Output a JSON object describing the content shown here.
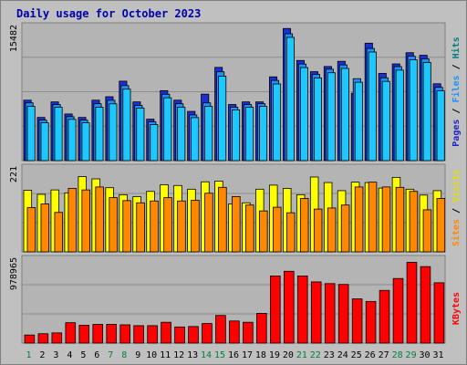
{
  "title": "Daily usage for October 2023",
  "colors": {
    "background": "#c0c0c0",
    "panel": "#b4b4b4",
    "title": "#0000aa",
    "hits": "#1e90ff",
    "files": "#1ec8ff",
    "pages": "#2222cc",
    "visits": "#ffff00",
    "sites": "#ff8800",
    "kbytes": "#ff0000",
    "weekend_label": "#008040",
    "weekday_label": "#000000"
  },
  "chart_data": [
    {
      "type": "bar",
      "title": "Daily usage for October 2023",
      "categories": [
        "1",
        "2",
        "3",
        "4",
        "5",
        "6",
        "7",
        "8",
        "9",
        "10",
        "11",
        "12",
        "13",
        "14",
        "15",
        "16",
        "17",
        "18",
        "19",
        "20",
        "21",
        "22",
        "23",
        "24",
        "25",
        "26",
        "27",
        "28",
        "29",
        "30",
        "31"
      ],
      "ymax_label": "15482",
      "ymax": 15482,
      "legend": [
        {
          "text": "Pages",
          "color": "#2222cc"
        },
        {
          "text": " / ",
          "color": "#000000"
        },
        {
          "text": "Files",
          "color": "#1e90ff"
        },
        {
          "text": " / ",
          "color": "#000000"
        },
        {
          "text": "Hits",
          "color": "#008080"
        }
      ],
      "series": [
        {
          "name": "Hits",
          "values": [
            7000,
            5000,
            6800,
            5400,
            5000,
            7000,
            7400,
            9200,
            6800,
            4800,
            8100,
            7000,
            5700,
            7700,
            10800,
            6500,
            6800,
            6800,
            9700,
            15300,
            11600,
            10300,
            10900,
            11500,
            7800,
            13600,
            10100,
            11200,
            12500,
            12200,
            8900
          ]
        },
        {
          "name": "Files",
          "values": [
            6900,
            4900,
            6700,
            5300,
            4900,
            6800,
            7200,
            8900,
            6600,
            4700,
            7900,
            6800,
            5500,
            6900,
            10500,
            6400,
            6700,
            6800,
            9500,
            14900,
            11400,
            10200,
            10800,
            11300,
            9700,
            13200,
            9800,
            11100,
            12300,
            12000,
            8700
          ]
        },
        {
          "name": "Pages",
          "values": [
            6700,
            4800,
            6600,
            5200,
            4800,
            6600,
            7000,
            8700,
            6500,
            4600,
            7700,
            6600,
            5400,
            6700,
            10200,
            6300,
            6600,
            6700,
            9300,
            14700,
            11200,
            10000,
            10600,
            11100,
            9500,
            13000,
            9600,
            10900,
            12100,
            11800,
            8500
          ]
        }
      ]
    },
    {
      "type": "bar",
      "categories": [
        "1",
        "2",
        "3",
        "4",
        "5",
        "6",
        "7",
        "8",
        "9",
        "10",
        "11",
        "12",
        "13",
        "14",
        "15",
        "16",
        "17",
        "18",
        "19",
        "20",
        "21",
        "22",
        "23",
        "24",
        "25",
        "26",
        "27",
        "28",
        "29",
        "30",
        "31"
      ],
      "ymax_label": "221",
      "ymax": 221,
      "legend": [
        {
          "text": "Sites",
          "color": "#ff8800"
        },
        {
          "text": " / ",
          "color": "#000000"
        },
        {
          "text": "Visits",
          "color": "#e0e000"
        }
      ],
      "series": [
        {
          "name": "Visits",
          "values": [
            167,
            156,
            168,
            160,
            204,
            198,
            174,
            155,
            150,
            164,
            182,
            180,
            170,
            190,
            192,
            130,
            133,
            170,
            181,
            172,
            155,
            203,
            188,
            166,
            189,
            188,
            173,
            202,
            170,
            154,
            166
          ]
        },
        {
          "name": "Sites",
          "values": [
            120,
            130,
            107,
            172,
            168,
            176,
            147,
            139,
            133,
            138,
            147,
            138,
            140,
            159,
            175,
            150,
            127,
            111,
            121,
            106,
            145,
            116,
            119,
            127,
            176,
            189,
            176,
            175,
            164,
            114,
            145
          ]
        }
      ]
    },
    {
      "type": "bar",
      "categories": [
        "1",
        "2",
        "3",
        "4",
        "5",
        "6",
        "7",
        "8",
        "9",
        "10",
        "11",
        "12",
        "13",
        "14",
        "15",
        "16",
        "17",
        "18",
        "19",
        "20",
        "21",
        "22",
        "23",
        "24",
        "25",
        "26",
        "27",
        "28",
        "29",
        "30",
        "31"
      ],
      "ymax_label": "978965",
      "ymax": 978965,
      "legend": [
        {
          "text": "KBytes",
          "color": "#ff0000"
        }
      ],
      "series": [
        {
          "name": "KBytes",
          "values": [
            95000,
            110000,
            120000,
            240000,
            210000,
            220000,
            220000,
            215000,
            205000,
            205000,
            245000,
            190000,
            195000,
            230000,
            325000,
            260000,
            245000,
            350000,
            790000,
            845000,
            790000,
            720000,
            700000,
            690000,
            520000,
            490000,
            620000,
            760000,
            950000,
            900000,
            710000
          ]
        }
      ]
    }
  ]
}
